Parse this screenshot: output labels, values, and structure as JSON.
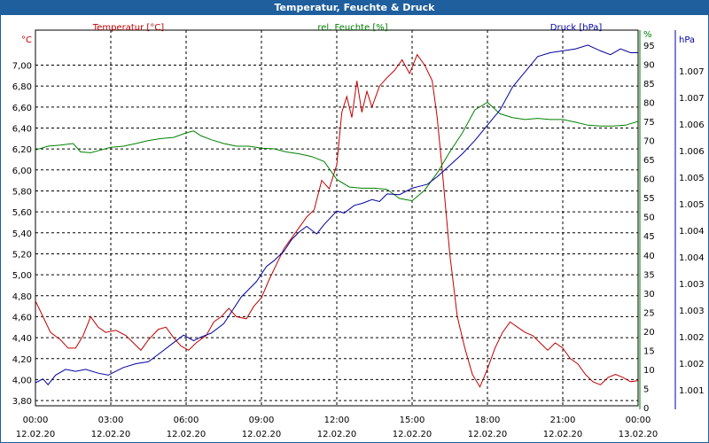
{
  "window": {
    "title": "Temperatur, Feuchte & Druck"
  },
  "chart_data": {
    "type": "line",
    "title": "Temperatur, Feuchte & Druck",
    "grid": true,
    "x_labels": [
      {
        "time": "00:00",
        "date": "12.02.20"
      },
      {
        "time": "03:00",
        "date": "12.02.20"
      },
      {
        "time": "06:00",
        "date": "12.02.20"
      },
      {
        "time": "09:00",
        "date": "12.02.20"
      },
      {
        "time": "12:00",
        "date": "12.02.20"
      },
      {
        "time": "15:00",
        "date": "12.02.20"
      },
      {
        "time": "18:00",
        "date": "12.02.20"
      },
      {
        "time": "21:00",
        "date": "12.02.20"
      },
      {
        "time": "00:00",
        "date": "13.02.20"
      }
    ],
    "xlim": [
      0,
      24
    ],
    "axes": {
      "temp": {
        "unit": "°C",
        "ylim": [
          3.75,
          7.3
        ],
        "ticks": [
          "3,80",
          "4,00",
          "4,20",
          "4,40",
          "4,60",
          "4,80",
          "5,00",
          "5,20",
          "5,40",
          "5,60",
          "5,80",
          "6,00",
          "6,20",
          "6,40",
          "6,60",
          "6,80",
          "7,00"
        ],
        "tick_values": [
          3.8,
          4.0,
          4.2,
          4.4,
          4.6,
          4.8,
          5.0,
          5.2,
          5.4,
          5.6,
          5.8,
          6.0,
          6.2,
          6.4,
          6.6,
          6.8,
          7.0
        ]
      },
      "hum": {
        "unit": "%",
        "ylim": [
          0,
          98
        ],
        "ticks": [
          "0",
          "5",
          "10",
          "15",
          "20",
          "25",
          "30",
          "35",
          "40",
          "45",
          "50",
          "55",
          "60",
          "65",
          "70",
          "75",
          "80",
          "85",
          "90",
          "95",
          "%"
        ],
        "tick_values": [
          0,
          5,
          10,
          15,
          20,
          25,
          30,
          35,
          40,
          45,
          50,
          55,
          60,
          65,
          70,
          75,
          80,
          85,
          90,
          95,
          98
        ]
      },
      "press": {
        "unit": "hPa",
        "ticks": [
          "1.001",
          "1.002",
          "1.002",
          "1.003",
          "1.003",
          "1.004",
          "1.004",
          "1.005",
          "1.005",
          "1.006",
          "1.006",
          "1.007",
          "1.007",
          "hPa"
        ]
      }
    },
    "series": [
      {
        "name": "Temperatur [°C]",
        "color": "#c00000",
        "axis": "temp",
        "points": [
          [
            0,
            4.75
          ],
          [
            0.3,
            4.6
          ],
          [
            0.6,
            4.45
          ],
          [
            1.0,
            4.38
          ],
          [
            1.3,
            4.3
          ],
          [
            1.6,
            4.3
          ],
          [
            1.9,
            4.42
          ],
          [
            2.2,
            4.6
          ],
          [
            2.5,
            4.5
          ],
          [
            2.8,
            4.45
          ],
          [
            3.2,
            4.47
          ],
          [
            3.6,
            4.42
          ],
          [
            3.9,
            4.35
          ],
          [
            4.2,
            4.28
          ],
          [
            4.5,
            4.38
          ],
          [
            4.9,
            4.48
          ],
          [
            5.2,
            4.5
          ],
          [
            5.5,
            4.4
          ],
          [
            5.8,
            4.32
          ],
          [
            6.1,
            4.28
          ],
          [
            6.4,
            4.35
          ],
          [
            6.8,
            4.42
          ],
          [
            7.1,
            4.55
          ],
          [
            7.4,
            4.6
          ],
          [
            7.7,
            4.68
          ],
          [
            8.0,
            4.6
          ],
          [
            8.4,
            4.58
          ],
          [
            8.7,
            4.7
          ],
          [
            9.0,
            4.78
          ],
          [
            9.3,
            4.95
          ],
          [
            9.6,
            5.1
          ],
          [
            9.9,
            5.25
          ],
          [
            10.2,
            5.35
          ],
          [
            10.5,
            5.45
          ],
          [
            10.8,
            5.55
          ],
          [
            11.1,
            5.62
          ],
          [
            11.4,
            5.9
          ],
          [
            11.7,
            5.82
          ],
          [
            12.0,
            6.05
          ],
          [
            12.2,
            6.55
          ],
          [
            12.4,
            6.7
          ],
          [
            12.6,
            6.5
          ],
          [
            12.8,
            6.85
          ],
          [
            13.0,
            6.55
          ],
          [
            13.2,
            6.75
          ],
          [
            13.4,
            6.6
          ],
          [
            13.7,
            6.8
          ],
          [
            14.0,
            6.88
          ],
          [
            14.3,
            6.95
          ],
          [
            14.6,
            7.05
          ],
          [
            14.9,
            6.92
          ],
          [
            15.2,
            7.1
          ],
          [
            15.5,
            7.0
          ],
          [
            15.8,
            6.85
          ],
          [
            16.0,
            6.5
          ],
          [
            16.2,
            6.0
          ],
          [
            16.5,
            5.2
          ],
          [
            16.8,
            4.6
          ],
          [
            17.1,
            4.3
          ],
          [
            17.4,
            4.05
          ],
          [
            17.7,
            3.93
          ],
          [
            18.0,
            4.1
          ],
          [
            18.3,
            4.3
          ],
          [
            18.6,
            4.45
          ],
          [
            18.9,
            4.55
          ],
          [
            19.2,
            4.5
          ],
          [
            19.5,
            4.45
          ],
          [
            19.8,
            4.42
          ],
          [
            20.1,
            4.35
          ],
          [
            20.4,
            4.28
          ],
          [
            20.7,
            4.35
          ],
          [
            21.0,
            4.3
          ],
          [
            21.3,
            4.2
          ],
          [
            21.6,
            4.15
          ],
          [
            21.9,
            4.05
          ],
          [
            22.2,
            3.98
          ],
          [
            22.5,
            3.95
          ],
          [
            22.8,
            4.02
          ],
          [
            23.1,
            4.05
          ],
          [
            23.4,
            4.02
          ],
          [
            23.7,
            3.98
          ],
          [
            24.0,
            3.99
          ]
        ]
      },
      {
        "name": "rel. Feuchte [%]",
        "color": "#008000",
        "axis": "hum",
        "points": [
          [
            0,
            67.5
          ],
          [
            0.5,
            68.5
          ],
          [
            1.0,
            68.8
          ],
          [
            1.5,
            69.2
          ],
          [
            1.8,
            67.0
          ],
          [
            2.2,
            66.8
          ],
          [
            2.6,
            67.5
          ],
          [
            3.0,
            68.2
          ],
          [
            3.5,
            68.5
          ],
          [
            4.0,
            69.2
          ],
          [
            4.5,
            70.0
          ],
          [
            5.0,
            70.5
          ],
          [
            5.5,
            70.8
          ],
          [
            6.0,
            72.0
          ],
          [
            6.3,
            72.5
          ],
          [
            6.6,
            71.2
          ],
          [
            7.0,
            70.2
          ],
          [
            7.5,
            69.2
          ],
          [
            8.0,
            68.5
          ],
          [
            8.5,
            68.5
          ],
          [
            9.0,
            68.0
          ],
          [
            9.5,
            67.8
          ],
          [
            10.0,
            67.0
          ],
          [
            10.5,
            66.5
          ],
          [
            11.0,
            65.8
          ],
          [
            11.5,
            64.5
          ],
          [
            12.0,
            59.8
          ],
          [
            12.5,
            57.8
          ],
          [
            13.0,
            57.5
          ],
          [
            13.5,
            57.5
          ],
          [
            14.0,
            57.2
          ],
          [
            14.5,
            54.8
          ],
          [
            15.0,
            54.2
          ],
          [
            15.5,
            57.0
          ],
          [
            16.0,
            61.5
          ],
          [
            16.5,
            67.0
          ],
          [
            17.0,
            72.0
          ],
          [
            17.5,
            78.0
          ],
          [
            18.0,
            80.0
          ],
          [
            18.5,
            77.0
          ],
          [
            19.0,
            76.0
          ],
          [
            19.5,
            75.5
          ],
          [
            20.0,
            75.8
          ],
          [
            20.5,
            75.5
          ],
          [
            21.0,
            75.5
          ],
          [
            21.5,
            74.8
          ],
          [
            22.0,
            74.0
          ],
          [
            22.5,
            73.8
          ],
          [
            23.0,
            73.8
          ],
          [
            23.5,
            74.0
          ],
          [
            24.0,
            75.0
          ]
        ]
      },
      {
        "name": "Druck [hPa]",
        "color": "#0000a0",
        "axis": "hum",
        "points": [
          [
            0,
            6.5
          ],
          [
            0.3,
            7.5
          ],
          [
            0.5,
            6.0
          ],
          [
            0.8,
            8.5
          ],
          [
            1.2,
            10.0
          ],
          [
            1.6,
            9.5
          ],
          [
            2.0,
            10.0
          ],
          [
            2.5,
            9.0
          ],
          [
            2.9,
            8.5
          ],
          [
            3.2,
            9.5
          ],
          [
            3.5,
            10.5
          ],
          [
            4.0,
            11.5
          ],
          [
            4.5,
            12.0
          ],
          [
            5.0,
            14.5
          ],
          [
            5.5,
            17.0
          ],
          [
            5.9,
            19.0
          ],
          [
            6.3,
            17.5
          ],
          [
            6.6,
            18.5
          ],
          [
            7.0,
            19.5
          ],
          [
            7.5,
            22.0
          ],
          [
            7.9,
            26.0
          ],
          [
            8.2,
            29.0
          ],
          [
            8.5,
            31.0
          ],
          [
            8.8,
            33.0
          ],
          [
            9.2,
            37.0
          ],
          [
            9.5,
            38.5
          ],
          [
            9.9,
            41.0
          ],
          [
            10.2,
            44.0
          ],
          [
            10.5,
            46.0
          ],
          [
            10.8,
            47.5
          ],
          [
            11.2,
            45.5
          ],
          [
            11.5,
            48.0
          ],
          [
            12.0,
            51.5
          ],
          [
            12.3,
            51.0
          ],
          [
            12.7,
            53.0
          ],
          [
            13.0,
            53.5
          ],
          [
            13.4,
            54.5
          ],
          [
            13.7,
            54.0
          ],
          [
            14.0,
            56.0
          ],
          [
            14.5,
            55.8
          ],
          [
            15.0,
            57.5
          ],
          [
            15.3,
            58.0
          ],
          [
            15.6,
            58.5
          ],
          [
            16.0,
            60.5
          ],
          [
            16.5,
            63.5
          ],
          [
            17.0,
            66.5
          ],
          [
            17.5,
            70.0
          ],
          [
            18.0,
            74.0
          ],
          [
            18.5,
            78.0
          ],
          [
            19.0,
            84.0
          ],
          [
            19.5,
            88.0
          ],
          [
            20.0,
            92.0
          ],
          [
            20.5,
            93.0
          ],
          [
            21.0,
            93.5
          ],
          [
            21.5,
            94.0
          ],
          [
            22.0,
            95.0
          ],
          [
            22.5,
            93.5
          ],
          [
            22.9,
            92.5
          ],
          [
            23.3,
            94.0
          ],
          [
            23.7,
            93.0
          ],
          [
            24.0,
            93.0
          ]
        ]
      }
    ]
  }
}
